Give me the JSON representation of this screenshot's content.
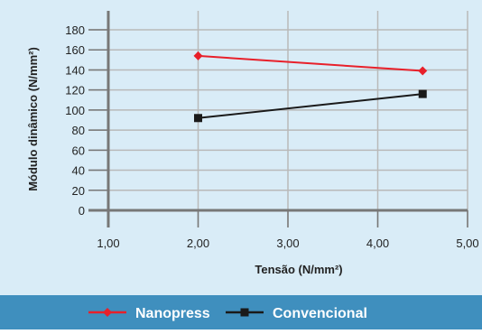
{
  "chart_data": {
    "type": "line",
    "xlabel": "Tensão (N/mm²)",
    "ylabel": "Módulo dinâmico (N/mm²)",
    "xlim": [
      1,
      5
    ],
    "ylim": [
      0,
      180
    ],
    "x_ticks": [
      1,
      2,
      3,
      4,
      5
    ],
    "x_tick_labels": [
      "1,00",
      "2,00",
      "3,00",
      "4,00",
      "5,00"
    ],
    "y_ticks": [
      0,
      20,
      40,
      60,
      80,
      100,
      120,
      140,
      160,
      180
    ],
    "y_tick_labels": [
      "0",
      "20",
      "40",
      "60",
      "80",
      "100",
      "120",
      "140",
      "160",
      "180"
    ],
    "grid": true,
    "legend_position": "bottom",
    "series": [
      {
        "name": "Nanopress",
        "color": "#e8202a",
        "marker": "diamond",
        "x": [
          2.0,
          4.5
        ],
        "y": [
          154,
          139
        ]
      },
      {
        "name": "Convencional",
        "color": "#1a1a1a",
        "marker": "square",
        "x": [
          2.0,
          4.5
        ],
        "y": [
          92,
          116
        ]
      }
    ],
    "colors": {
      "plot_background": "#d9ecf7",
      "grid": "#b9b9b9",
      "axis": "#777777",
      "legend_background": "#3f8fbe",
      "legend_text": "#ffffff"
    }
  }
}
